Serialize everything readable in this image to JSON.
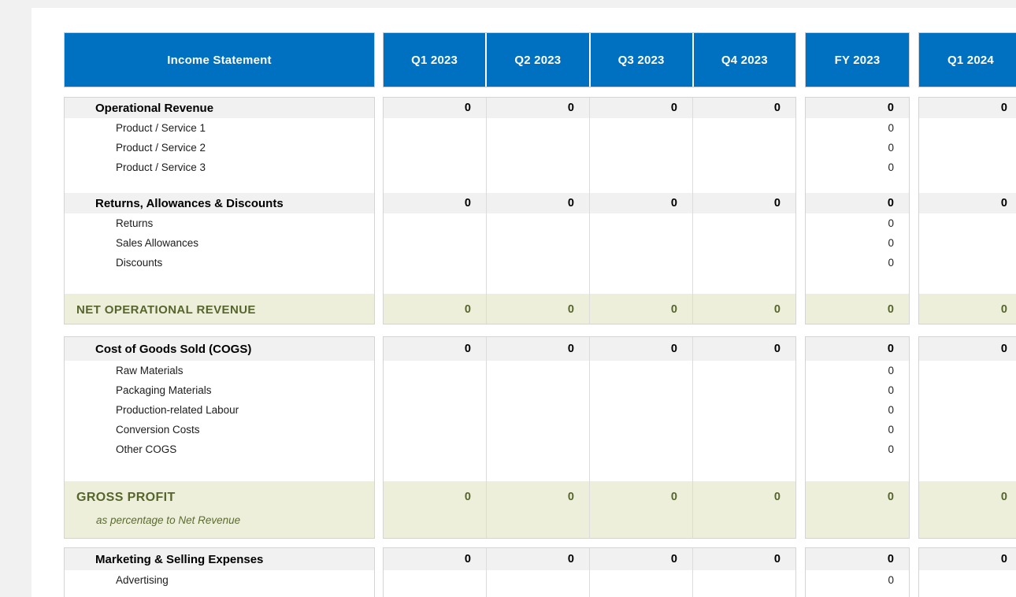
{
  "colors": {
    "accent_blue": "#0070c0",
    "header_text": "#ffffff",
    "section_row_bg": "#f1f1f1",
    "total_row_bg": "#edefdb",
    "total_text_olive": "#56652c",
    "page_margin_gray": "#f1f1f2"
  },
  "table": {
    "title": "Income Statement",
    "columns": [
      {
        "id": "q1_2023",
        "label": "Q1 2023"
      },
      {
        "id": "q2_2023",
        "label": "Q2 2023"
      },
      {
        "id": "q3_2023",
        "label": "Q3 2023"
      },
      {
        "id": "q4_2023",
        "label": "Q4 2023"
      },
      {
        "id": "fy_2023",
        "label": "FY 2023"
      },
      {
        "id": "q1_2024",
        "label": "Q1 2024"
      }
    ],
    "rows": [
      {
        "type": "section",
        "label": "Operational Revenue",
        "cells": {
          "q1_2023": "0",
          "q2_2023": "0",
          "q3_2023": "0",
          "q4_2023": "0",
          "fy_2023": "0",
          "q1_2024": "0"
        }
      },
      {
        "type": "item",
        "label": "Product / Service 1",
        "cells": {
          "fy_2023": "0"
        }
      },
      {
        "type": "item",
        "label": "Product / Service 2",
        "cells": {
          "fy_2023": "0"
        }
      },
      {
        "type": "item",
        "label": "Product / Service 3",
        "cells": {
          "fy_2023": "0"
        }
      },
      {
        "type": "blank",
        "cells": {}
      },
      {
        "type": "section",
        "label": "Returns, Allowances & Discounts",
        "cells": {
          "q1_2023": "0",
          "q2_2023": "0",
          "q3_2023": "0",
          "q4_2023": "0",
          "fy_2023": "0",
          "q1_2024": "0"
        }
      },
      {
        "type": "item",
        "label": "Returns",
        "cells": {
          "fy_2023": "0"
        }
      },
      {
        "type": "item",
        "label": "Sales Allowances",
        "cells": {
          "fy_2023": "0"
        }
      },
      {
        "type": "item",
        "label": "Discounts",
        "cells": {
          "fy_2023": "0"
        }
      },
      {
        "type": "blank",
        "cells": {}
      },
      {
        "type": "total",
        "label": "NET OPERATIONAL REVENUE",
        "cells": {
          "q1_2023": "0",
          "q2_2023": "0",
          "q3_2023": "0",
          "q4_2023": "0",
          "fy_2023": "0",
          "q1_2024": "0"
        }
      },
      {
        "type": "section",
        "label": "Cost of Goods Sold (COGS)",
        "cells": {
          "q1_2023": "0",
          "q2_2023": "0",
          "q3_2023": "0",
          "q4_2023": "0",
          "fy_2023": "0",
          "q1_2024": "0"
        }
      },
      {
        "type": "item",
        "label": "Raw Materials",
        "cells": {
          "fy_2023": "0"
        }
      },
      {
        "type": "item",
        "label": "Packaging Materials",
        "cells": {
          "fy_2023": "0"
        }
      },
      {
        "type": "item",
        "label": "Production-related Labour",
        "cells": {
          "fy_2023": "0"
        }
      },
      {
        "type": "item",
        "label": "Conversion Costs",
        "cells": {
          "fy_2023": "0"
        }
      },
      {
        "type": "item",
        "label": "Other COGS",
        "cells": {
          "fy_2023": "0"
        }
      },
      {
        "type": "blank",
        "cells": {}
      },
      {
        "type": "total2",
        "label": "GROSS PROFIT",
        "sublabel": "as percentage to Net Revenue",
        "cells": {
          "q1_2023": "0",
          "q2_2023": "0",
          "q3_2023": "0",
          "q4_2023": "0",
          "fy_2023": "0",
          "q1_2024": "0"
        }
      },
      {
        "type": "section",
        "label": "Marketing & Selling Expenses",
        "cells": {
          "q1_2023": "0",
          "q2_2023": "0",
          "q3_2023": "0",
          "q4_2023": "0",
          "fy_2023": "0",
          "q1_2024": "0"
        }
      },
      {
        "type": "item",
        "label": "Advertising",
        "cells": {
          "fy_2023": "0"
        }
      },
      {
        "type": "blank",
        "cells": {}
      }
    ]
  }
}
